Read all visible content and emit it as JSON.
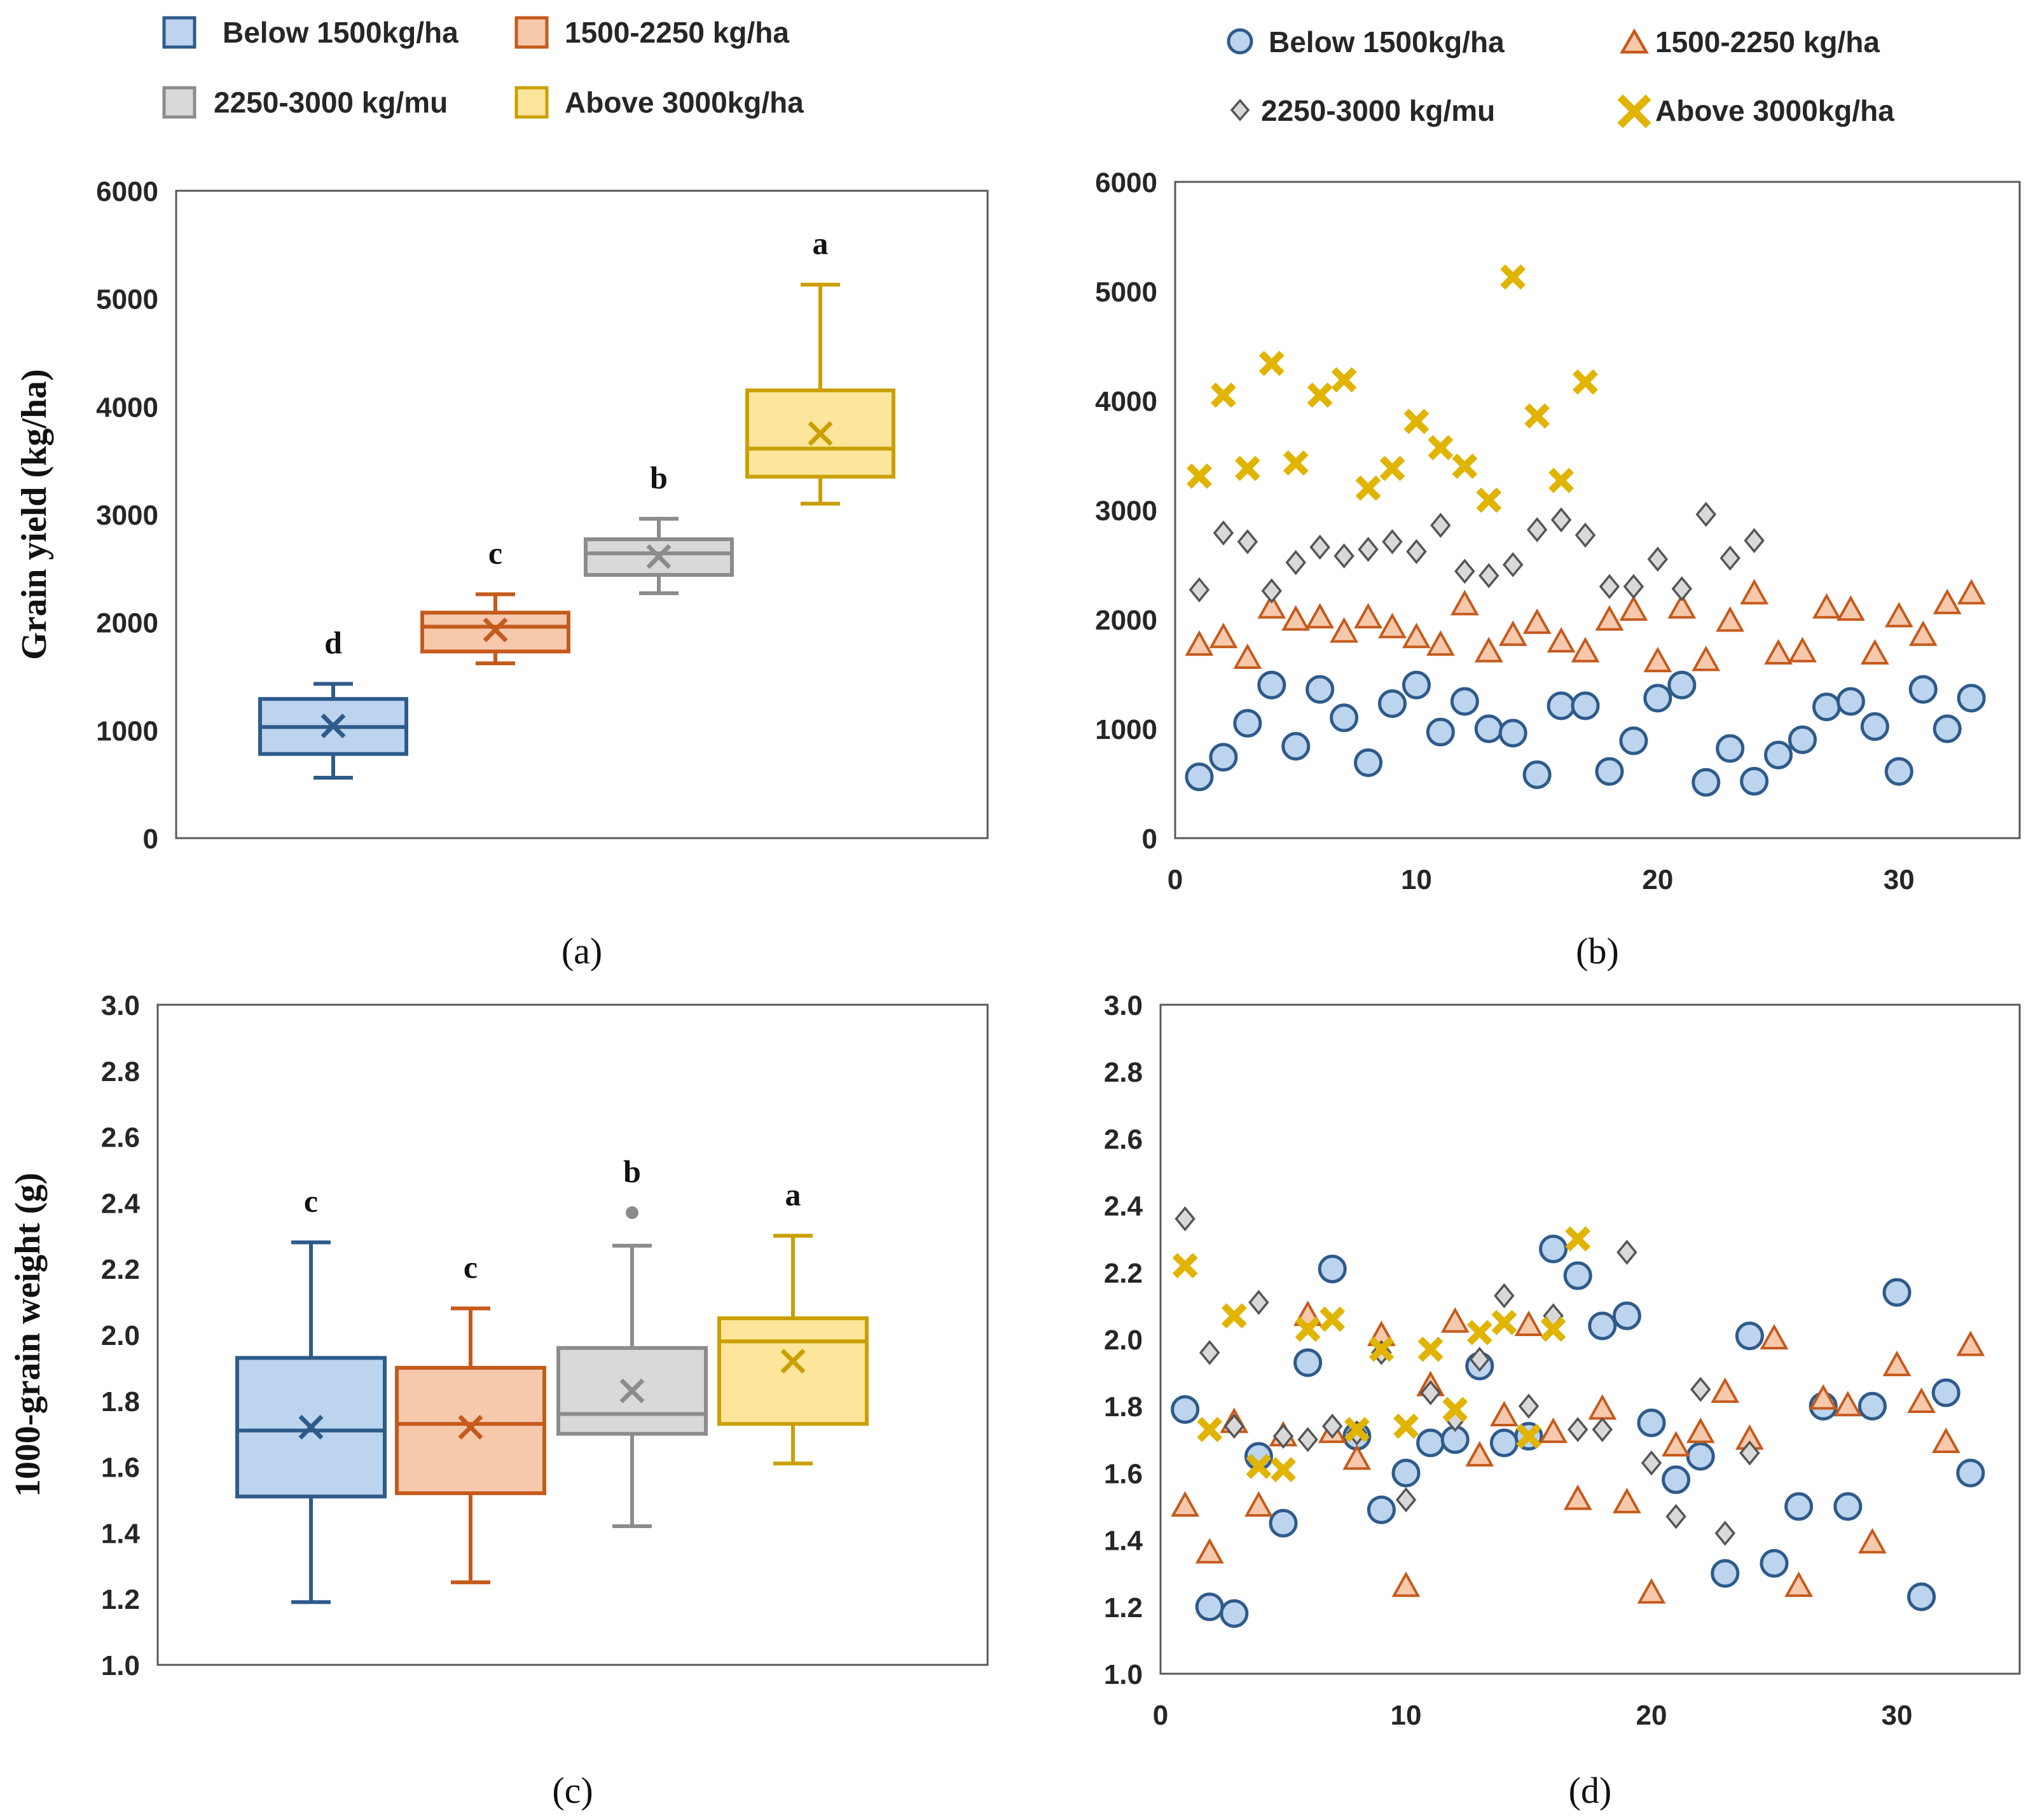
{
  "series": [
    {
      "key": "below",
      "stroke": "#2e5b8a",
      "fill": "#bcd4ee",
      "marker": "circle"
    },
    {
      "key": "mid",
      "stroke": "#c55a1c",
      "fill": "#f6c9ad",
      "marker": "triangle"
    },
    {
      "key": "high",
      "stroke": "#8c8c8c",
      "fill": "#d9d9d9",
      "marker": "diamond"
    },
    {
      "key": "top",
      "stroke": "#c9a000",
      "fill": "#fde59b",
      "marker": "x"
    }
  ],
  "legend_left": {
    "entries": [
      {
        "label": "Below 1500kg/ha",
        "series": "below"
      },
      {
        "label": "1500-2250 kg/ha",
        "series": "mid"
      },
      {
        "label": "2250-3000 kg/mu",
        "series": "high"
      },
      {
        "label": "Above 3000kg/ha",
        "series": "top"
      }
    ]
  },
  "legend_right": {
    "entries": [
      {
        "label": "Below 1500kg/ha",
        "series": "below"
      },
      {
        "label": "1500-2250 kg/ha",
        "series": "mid"
      },
      {
        "label": "2250-3000 kg/mu",
        "series": "high"
      },
      {
        "label": "Above 3000kg/ha",
        "series": "top"
      }
    ]
  },
  "chart_data": [
    {
      "id": "a",
      "type": "box",
      "caption": "(a)",
      "ylabel": "Grain yield (kg/ha)",
      "ylim": [
        0,
        6000
      ],
      "yticks": [
        "0",
        "1000",
        "2000",
        "3000",
        "4000",
        "5000",
        "6000"
      ],
      "boxes": [
        {
          "series": "below",
          "min": 560,
          "q1": 780,
          "median": 1030,
          "q3": 1290,
          "max": 1430,
          "mean": 1040,
          "letter": "d"
        },
        {
          "series": "mid",
          "min": 1620,
          "q1": 1730,
          "median": 1960,
          "q3": 2090,
          "max": 2260,
          "mean": 1930,
          "letter": "c"
        },
        {
          "series": "high",
          "min": 2270,
          "q1": 2440,
          "median": 2640,
          "q3": 2770,
          "max": 2960,
          "mean": 2610,
          "letter": "b"
        },
        {
          "series": "top",
          "min": 3100,
          "q1": 3350,
          "median": 3610,
          "q3": 4150,
          "max": 5130,
          "mean": 3750,
          "letter": "a"
        }
      ]
    },
    {
      "id": "b",
      "type": "scatter",
      "caption": "(b)",
      "xlim": [
        0,
        35
      ],
      "xticks": [
        "0",
        "10",
        "20",
        "30"
      ],
      "ylim": [
        0,
        6000
      ],
      "yticks": [
        "0",
        "1000",
        "2000",
        "3000",
        "4000",
        "5000",
        "6000"
      ],
      "series": [
        {
          "series": "below",
          "y": [
            560,
            740,
            1050,
            1400,
            840,
            1360,
            1100,
            690,
            1230,
            1400,
            970,
            1250,
            1000,
            960,
            580,
            1210,
            1210,
            610,
            890,
            1280,
            1400,
            510,
            820,
            520,
            760,
            900,
            1200,
            1250,
            1020,
            610,
            1360,
            1000,
            1280
          ]
        },
        {
          "series": "mid",
          "y": [
            1760,
            1830,
            1640,
            2100,
            1990,
            2010,
            1880,
            2010,
            1920,
            1830,
            1760,
            2130,
            1700,
            1850,
            1960,
            1790,
            1700,
            1990,
            2080,
            1610,
            2100,
            1620,
            1980,
            2230,
            1680,
            1700,
            2100,
            2080,
            1680,
            2020,
            1850,
            2140,
            2230
          ]
        },
        {
          "series": "high",
          "y": [
            2270,
            2790,
            2710,
            2260,
            2520,
            2660,
            2580,
            2640,
            2710,
            2620,
            2860,
            2440,
            2400,
            2500,
            2820,
            2910,
            2770,
            2300,
            2300,
            2550,
            2280,
            2960,
            2560,
            2720
          ]
        },
        {
          "series": "top",
          "y": [
            3310,
            4050,
            3380,
            4340,
            3430,
            4050,
            4190,
            3200,
            3380,
            3810,
            3570,
            3400,
            3090,
            5130,
            3860,
            3270,
            4170
          ]
        }
      ]
    },
    {
      "id": "c",
      "type": "box",
      "caption": "(c)",
      "ylabel": "1000-grain weight (g)",
      "ylim": [
        1.0,
        3.0
      ],
      "yticks": [
        "1.0",
        "1.2",
        "1.4",
        "1.6",
        "1.8",
        "2.0",
        "2.2",
        "2.4",
        "2.6",
        "2.8",
        "3.0"
      ],
      "boxes": [
        {
          "series": "below",
          "min": 1.19,
          "q1": 1.51,
          "median": 1.71,
          "q3": 1.93,
          "max": 2.28,
          "mean": 1.72,
          "letter": "c"
        },
        {
          "series": "mid",
          "min": 1.25,
          "q1": 1.52,
          "median": 1.73,
          "q3": 1.9,
          "max": 2.08,
          "mean": 1.72,
          "letter": "c"
        },
        {
          "series": "high",
          "min": 1.42,
          "q1": 1.7,
          "median": 1.76,
          "q3": 1.96,
          "max": 2.27,
          "mean": 1.83,
          "outliers": [
            2.37
          ],
          "letter": "b"
        },
        {
          "series": "top",
          "min": 1.61,
          "q1": 1.73,
          "median": 1.98,
          "q3": 2.05,
          "max": 2.3,
          "mean": 1.92,
          "letter": "a"
        }
      ]
    },
    {
      "id": "d",
      "type": "scatter",
      "caption": "(d)",
      "xlim": [
        0,
        35
      ],
      "xticks": [
        "0",
        "10",
        "20",
        "30"
      ],
      "ylim": [
        1.0,
        3.0
      ],
      "yticks": [
        "1.0",
        "1.2",
        "1.4",
        "1.6",
        "1.8",
        "2.0",
        "2.2",
        "2.4",
        "2.6",
        "2.8",
        "3.0"
      ],
      "series": [
        {
          "series": "below",
          "y": [
            1.79,
            1.2,
            1.18,
            1.65,
            1.45,
            1.93,
            2.21,
            1.71,
            1.49,
            1.6,
            1.69,
            1.7,
            1.92,
            1.69,
            1.71,
            2.27,
            2.19,
            2.04,
            2.07,
            1.75,
            1.58,
            1.65,
            1.3,
            2.01,
            1.33,
            1.5,
            1.8,
            1.5,
            1.8,
            2.14,
            1.23,
            1.84,
            1.6
          ]
        },
        {
          "series": "mid",
          "y": [
            1.5,
            1.36,
            1.75,
            1.5,
            1.71,
            2.07,
            1.72,
            1.64,
            2.01,
            1.26,
            1.86,
            2.05,
            1.65,
            1.77,
            2.04,
            1.72,
            1.52,
            1.79,
            1.51,
            1.24,
            1.68,
            1.72,
            1.84,
            1.7,
            2.0,
            1.26,
            1.82,
            1.8,
            1.39,
            1.92,
            1.81,
            1.69,
            1.98
          ]
        },
        {
          "series": "high",
          "y": [
            2.36,
            1.96,
            1.74,
            2.11,
            1.71,
            1.7,
            1.74,
            1.72,
            1.96,
            1.52,
            1.84,
            1.76,
            1.94,
            2.13,
            1.8,
            2.07,
            1.73,
            1.73,
            2.26,
            1.63,
            1.47,
            1.85,
            1.42,
            1.66
          ]
        },
        {
          "series": "top",
          "y": [
            2.22,
            1.73,
            2.07,
            1.62,
            1.61,
            2.03,
            2.06,
            1.73,
            1.97,
            1.74,
            1.97,
            1.79,
            2.02,
            2.05,
            1.71,
            2.03,
            2.3
          ]
        }
      ]
    }
  ]
}
